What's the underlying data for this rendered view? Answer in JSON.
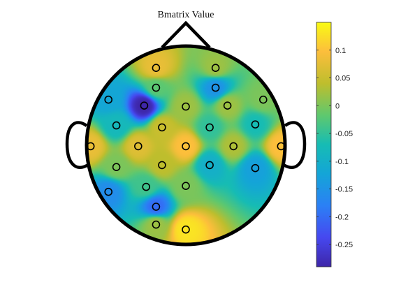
{
  "chart_data": {
    "type": "heatmap",
    "title": "Bmatrix Value",
    "colormap": "parula",
    "colorbar": {
      "range": [
        -0.29,
        0.15
      ],
      "ticks": [
        0.1,
        0.05,
        0,
        -0.05,
        -0.1,
        -0.15,
        -0.2,
        -0.25
      ],
      "tick_labels": [
        "0.1",
        "0.05",
        "0",
        "-0.05",
        "-0.1",
        "-0.15",
        "-0.2",
        "-0.25"
      ]
    },
    "electrodes": [
      {
        "x": -0.3,
        "y": 0.78,
        "value": 0.08
      },
      {
        "x": 0.3,
        "y": 0.78,
        "value": 0.02
      },
      {
        "x": -0.3,
        "y": 0.58,
        "value": -0.02
      },
      {
        "x": 0.3,
        "y": 0.58,
        "value": -0.15
      },
      {
        "x": -0.78,
        "y": 0.46,
        "value": -0.12
      },
      {
        "x": -0.42,
        "y": 0.4,
        "value": -0.29
      },
      {
        "x": 0.0,
        "y": 0.39,
        "value": 0.02
      },
      {
        "x": 0.42,
        "y": 0.4,
        "value": 0.02
      },
      {
        "x": 0.78,
        "y": 0.46,
        "value": 0.0
      },
      {
        "x": -0.7,
        "y": 0.2,
        "value": -0.08
      },
      {
        "x": -0.24,
        "y": 0.18,
        "value": 0.05
      },
      {
        "x": 0.24,
        "y": 0.18,
        "value": -0.05
      },
      {
        "x": 0.7,
        "y": 0.21,
        "value": -0.07
      },
      {
        "x": -0.96,
        "y": -0.01,
        "value": 0.08
      },
      {
        "x": -0.48,
        "y": -0.01,
        "value": 0.07
      },
      {
        "x": 0.0,
        "y": -0.01,
        "value": 0.1
      },
      {
        "x": 0.48,
        "y": -0.01,
        "value": 0.03
      },
      {
        "x": 0.96,
        "y": -0.01,
        "value": 0.1
      },
      {
        "x": -0.7,
        "y": -0.22,
        "value": 0.0
      },
      {
        "x": -0.24,
        "y": -0.2,
        "value": 0.04
      },
      {
        "x": 0.24,
        "y": -0.2,
        "value": -0.1
      },
      {
        "x": 0.7,
        "y": -0.23,
        "value": -0.13
      },
      {
        "x": -0.78,
        "y": -0.47,
        "value": -0.16
      },
      {
        "x": -0.4,
        "y": -0.42,
        "value": -0.04
      },
      {
        "x": 0.0,
        "y": -0.41,
        "value": 0.0
      },
      {
        "x": -0.3,
        "y": -0.62,
        "value": -0.2
      },
      {
        "x": -0.3,
        "y": -0.8,
        "value": 0.02
      },
      {
        "x": 0.0,
        "y": -0.85,
        "value": 0.13
      }
    ],
    "outline_color": "#000000",
    "grid": false
  }
}
